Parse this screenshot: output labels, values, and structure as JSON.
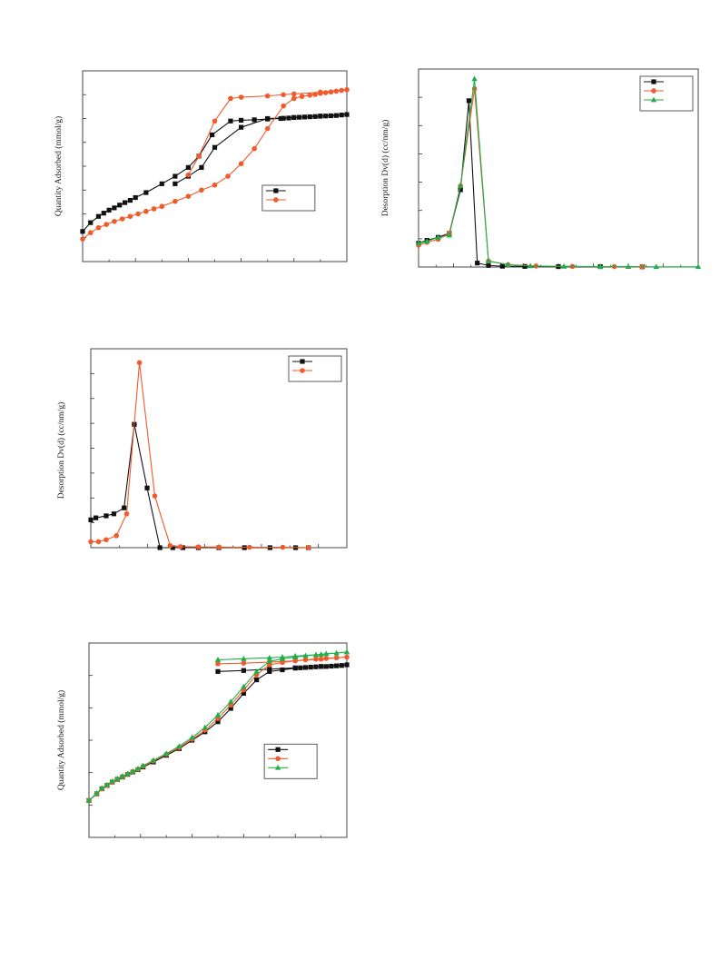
{
  "chart_data": [
    {
      "type": "line",
      "ylabel": "Quantity Adsorbed (mmol/g)",
      "xlim": [
        0,
        1.0
      ],
      "ylim": [
        0,
        7.6
      ],
      "grid": false,
      "legend_position": "right",
      "series": [
        {
          "color": "#111111",
          "marker": "square",
          "x": [
            0.0,
            0.03,
            0.06,
            0.08,
            0.1,
            0.12,
            0.14,
            0.16,
            0.18,
            0.2,
            0.24,
            0.3,
            0.35,
            0.4,
            0.44,
            0.49,
            0.56,
            0.6,
            0.65,
            0.7,
            0.75,
            0.76,
            0.78,
            0.8,
            0.82,
            0.84,
            0.86,
            0.88,
            0.9,
            0.92,
            0.94,
            0.96,
            0.98,
            1.0,
            0.9,
            0.8,
            0.7,
            0.6,
            0.5,
            0.45,
            0.4,
            0.35
          ],
          "y": [
            1.2,
            1.55,
            1.8,
            1.93,
            2.05,
            2.14,
            2.25,
            2.35,
            2.44,
            2.55,
            2.75,
            3.1,
            3.4,
            3.75,
            4.2,
            5.05,
            5.6,
            5.63,
            5.65,
            5.68,
            5.7,
            5.71,
            5.72,
            5.74,
            5.75,
            5.76,
            5.77,
            5.78,
            5.79,
            5.8,
            5.81,
            5.82,
            5.84,
            5.86,
            5.8,
            5.74,
            5.7,
            5.35,
            4.55,
            3.75,
            3.4,
            3.1
          ]
        },
        {
          "color": "#f15a2b",
          "marker": "circle",
          "x": [
            0.0,
            0.03,
            0.06,
            0.09,
            0.12,
            0.15,
            0.18,
            0.21,
            0.24,
            0.27,
            0.3,
            0.35,
            0.4,
            0.45,
            0.5,
            0.55,
            0.6,
            0.65,
            0.7,
            0.76,
            0.8,
            0.83,
            0.86,
            0.88,
            0.9,
            0.92,
            0.94,
            0.96,
            0.98,
            1.0,
            0.9,
            0.8,
            0.76,
            0.7,
            0.6,
            0.56,
            0.5,
            0.44,
            0.4
          ],
          "y": [
            0.9,
            1.15,
            1.35,
            1.48,
            1.6,
            1.7,
            1.8,
            1.9,
            2.0,
            2.1,
            2.2,
            2.4,
            2.6,
            2.85,
            3.05,
            3.4,
            3.9,
            4.5,
            5.3,
            6.2,
            6.5,
            6.58,
            6.63,
            6.66,
            6.7,
            6.73,
            6.76,
            6.79,
            6.82,
            6.85,
            6.75,
            6.68,
            6.65,
            6.6,
            6.55,
            6.5,
            5.6,
            4.2,
            3.45
          ]
        }
      ],
      "legend": []
    },
    {
      "type": "line",
      "ylabel": "Desorption Dv(d) (cc/nm/g)",
      "xlim": [
        0,
        1.0
      ],
      "ylim": [
        0,
        1.0
      ],
      "grid": false,
      "legend_position": "top-right",
      "series": [
        {
          "color": "#111111",
          "marker": "square",
          "x": [
            0.0,
            0.03,
            0.07,
            0.11,
            0.15,
            0.18,
            0.21,
            0.25,
            0.3,
            0.38,
            0.5,
            0.65,
            0.8
          ],
          "y": [
            0.12,
            0.135,
            0.15,
            0.17,
            0.39,
            0.84,
            0.02,
            0.008,
            0.004,
            0.003,
            0.002,
            0.002,
            0.001
          ]
        },
        {
          "color": "#f15a2b",
          "marker": "circle",
          "x": [
            0.0,
            0.03,
            0.07,
            0.11,
            0.15,
            0.2,
            0.25,
            0.32,
            0.42,
            0.55,
            0.7,
            0.8
          ],
          "y": [
            0.11,
            0.125,
            0.14,
            0.17,
            0.41,
            0.9,
            0.03,
            0.012,
            0.005,
            0.003,
            0.002,
            0.001
          ]
        },
        {
          "color": "#1fae4a",
          "marker": "triangle",
          "x": [
            0.0,
            0.03,
            0.07,
            0.11,
            0.15,
            0.2,
            0.25,
            0.32,
            0.4,
            0.52,
            0.65,
            0.75,
            0.85,
            1.0
          ],
          "y": [
            0.12,
            0.13,
            0.15,
            0.16,
            0.41,
            0.95,
            0.03,
            0.012,
            0.005,
            0.003,
            0.002,
            0.002,
            0.001,
            0.001
          ]
        }
      ],
      "legend": []
    },
    {
      "type": "line",
      "ylabel": "Desorption Dv(d) (cc/nm/g)",
      "xlim": [
        0,
        1.0
      ],
      "ylim": [
        0,
        1.0
      ],
      "grid": false,
      "legend_position": "top-right",
      "series": [
        {
          "color": "#111111",
          "marker": "square",
          "x": [
            0.0,
            0.02,
            0.06,
            0.09,
            0.13,
            0.17,
            0.22,
            0.27,
            0.32,
            0.36,
            0.42,
            0.5,
            0.6,
            0.7,
            0.8,
            0.85
          ],
          "y": [
            0.14,
            0.15,
            0.16,
            0.17,
            0.2,
            0.62,
            0.3,
            0.0,
            0.0,
            0.0,
            0.0,
            0.0,
            0.0,
            0.0,
            0.0,
            0.0
          ]
        },
        {
          "color": "#f15a2b",
          "marker": "circle",
          "x": [
            0.0,
            0.03,
            0.06,
            0.1,
            0.14,
            0.19,
            0.25,
            0.31,
            0.35,
            0.42,
            0.5,
            0.62,
            0.75,
            0.85
          ],
          "y": [
            0.03,
            0.03,
            0.04,
            0.06,
            0.17,
            0.93,
            0.26,
            0.01,
            0.005,
            0.004,
            0.003,
            0.002,
            0.002,
            0.001
          ]
        }
      ],
      "legend": []
    },
    {
      "type": "line",
      "ylabel": "Quantity Adsorbed (mmol/g)",
      "xlim": [
        0,
        1.0
      ],
      "ylim": [
        0,
        5.8
      ],
      "grid": false,
      "legend_position": "right",
      "series": [
        {
          "color": "#111111",
          "marker": "square",
          "x": [
            0.0,
            0.03,
            0.05,
            0.07,
            0.09,
            0.11,
            0.13,
            0.15,
            0.17,
            0.19,
            0.21,
            0.25,
            0.3,
            0.35,
            0.4,
            0.45,
            0.5,
            0.55,
            0.6,
            0.65,
            0.7,
            0.75,
            0.8,
            0.82,
            0.84,
            0.86,
            0.88,
            0.9,
            0.92,
            0.94,
            0.96,
            0.98,
            1.0,
            0.9,
            0.8,
            0.7,
            0.6,
            0.5
          ],
          "y": [
            1.1,
            1.3,
            1.45,
            1.55,
            1.65,
            1.73,
            1.8,
            1.88,
            1.95,
            2.02,
            2.1,
            2.25,
            2.45,
            2.65,
            2.9,
            3.15,
            3.45,
            3.85,
            4.3,
            4.7,
            4.95,
            5.0,
            5.05,
            5.06,
            5.07,
            5.08,
            5.09,
            5.1,
            5.1,
            5.11,
            5.12,
            5.13,
            5.15,
            5.1,
            5.06,
            5.02,
            4.98,
            4.95
          ]
        },
        {
          "color": "#f15a2b",
          "marker": "circle",
          "x": [
            0.0,
            0.03,
            0.05,
            0.07,
            0.09,
            0.11,
            0.13,
            0.15,
            0.17,
            0.19,
            0.21,
            0.25,
            0.3,
            0.35,
            0.4,
            0.45,
            0.5,
            0.55,
            0.6,
            0.65,
            0.7,
            0.75,
            0.8,
            0.84,
            0.88,
            0.92,
            0.96,
            1.0,
            0.9,
            0.8,
            0.7,
            0.6,
            0.5
          ],
          "y": [
            1.1,
            1.3,
            1.45,
            1.55,
            1.65,
            1.73,
            1.81,
            1.89,
            1.96,
            2.03,
            2.12,
            2.28,
            2.48,
            2.68,
            2.93,
            3.2,
            3.55,
            3.95,
            4.4,
            4.85,
            5.15,
            5.22,
            5.27,
            5.3,
            5.32,
            5.34,
            5.36,
            5.38,
            5.32,
            5.27,
            5.23,
            5.2,
            5.18
          ]
        },
        {
          "color": "#1fae4a",
          "marker": "triangle",
          "x": [
            0.0,
            0.03,
            0.05,
            0.07,
            0.09,
            0.11,
            0.13,
            0.15,
            0.17,
            0.19,
            0.21,
            0.25,
            0.3,
            0.35,
            0.4,
            0.45,
            0.5,
            0.55,
            0.6,
            0.65,
            0.7,
            0.75,
            0.8,
            0.84,
            0.88,
            0.92,
            0.96,
            1.0,
            0.9,
            0.8,
            0.75,
            0.7,
            0.6,
            0.5
          ],
          "y": [
            1.1,
            1.32,
            1.47,
            1.57,
            1.67,
            1.75,
            1.83,
            1.9,
            1.97,
            2.05,
            2.14,
            2.3,
            2.5,
            2.72,
            2.98,
            3.28,
            3.65,
            4.05,
            4.5,
            4.95,
            5.25,
            5.33,
            5.38,
            5.42,
            5.45,
            5.48,
            5.5,
            5.53,
            5.46,
            5.41,
            5.38,
            5.36,
            5.33,
            5.3
          ]
        }
      ],
      "legend": []
    }
  ]
}
